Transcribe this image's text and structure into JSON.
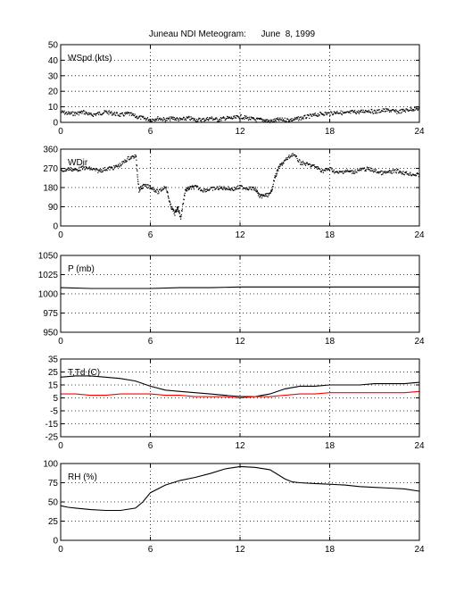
{
  "title": "Juneau NDI Meteogram:      June  8, 1999",
  "chart_data": [
    {
      "type": "line",
      "label": "WSpd (kts)",
      "xlim": [
        0,
        24
      ],
      "xticks": [
        0,
        6,
        12,
        18,
        24
      ],
      "ylim": [
        0,
        50
      ],
      "yticks": [
        0,
        10,
        20,
        30,
        40,
        50
      ],
      "grid": true,
      "series": [
        {
          "color": "#000000",
          "style": "dots",
          "x": [
            0,
            0.5,
            1,
            1.5,
            2,
            2.5,
            3,
            3.5,
            4,
            4.5,
            5,
            5.5,
            6,
            6.5,
            7,
            7.5,
            8,
            8.5,
            9,
            9.5,
            10,
            10.5,
            11,
            11.5,
            12,
            12.5,
            13,
            13.5,
            14,
            14.5,
            15,
            15.5,
            16,
            16.5,
            17,
            17.5,
            18,
            18.5,
            19,
            19.5,
            20,
            20.5,
            21,
            21.5,
            22,
            22.5,
            23,
            23.5,
            24
          ],
          "y": [
            7,
            6,
            6,
            7,
            5,
            6,
            7,
            6,
            5,
            6,
            4,
            3,
            2,
            3,
            2,
            3,
            2,
            3,
            2,
            2,
            3,
            2,
            3,
            3,
            4,
            3,
            2,
            2,
            1,
            2,
            2,
            2,
            3,
            4,
            5,
            6,
            6,
            7,
            6,
            7,
            7,
            8,
            7,
            8,
            8,
            7,
            8,
            9,
            9
          ]
        }
      ]
    },
    {
      "type": "scatter",
      "label": "WDir",
      "xlim": [
        0,
        24
      ],
      "xticks": [
        0,
        6,
        12,
        18,
        24
      ],
      "ylim": [
        0,
        360
      ],
      "yticks": [
        0,
        90,
        180,
        270,
        360
      ],
      "grid": true,
      "series": [
        {
          "color": "#000000",
          "style": "dots",
          "x": [
            0,
            0.5,
            1,
            1.5,
            2,
            2.5,
            3,
            3.5,
            4,
            4.5,
            5,
            5.2,
            5.5,
            6,
            6.5,
            7,
            7.3,
            7.6,
            7.8,
            8,
            8.3,
            8.6,
            9,
            9.5,
            10,
            10.5,
            11,
            11.5,
            12,
            12.5,
            13,
            13.3,
            13.6,
            14,
            14.3,
            14.6,
            15,
            15.5,
            16,
            16.5,
            17,
            17.5,
            18,
            18.5,
            19,
            19.5,
            20,
            20.5,
            21,
            21.5,
            22,
            22.5,
            23,
            23.5,
            24
          ],
          "y": [
            260,
            270,
            265,
            275,
            270,
            260,
            270,
            275,
            290,
            320,
            330,
            170,
            190,
            185,
            160,
            190,
            100,
            60,
            90,
            40,
            170,
            180,
            185,
            170,
            175,
            180,
            180,
            175,
            185,
            180,
            175,
            140,
            145,
            150,
            230,
            280,
            310,
            340,
            300,
            290,
            280,
            260,
            270,
            250,
            260,
            255,
            265,
            270,
            260,
            250,
            255,
            260,
            250,
            245,
            240
          ]
        }
      ]
    },
    {
      "type": "line",
      "label": "P (mb)",
      "xlim": [
        0,
        24
      ],
      "xticks": [
        0,
        6,
        12,
        18,
        24
      ],
      "ylim": [
        950,
        1050
      ],
      "yticks": [
        950,
        975,
        1000,
        1025,
        1050
      ],
      "grid": true,
      "series": [
        {
          "color": "#000000",
          "style": "line",
          "x": [
            0,
            2,
            4,
            6,
            8,
            10,
            12,
            14,
            16,
            18,
            20,
            22,
            24
          ],
          "y": [
            1008,
            1007,
            1007,
            1007,
            1008,
            1008,
            1009,
            1009,
            1009,
            1009,
            1009,
            1009,
            1009
          ]
        }
      ]
    },
    {
      "type": "line",
      "label": "T,Td (C)",
      "xlim": [
        0,
        24
      ],
      "xticks": [
        0,
        6,
        12,
        18,
        24
      ],
      "ylim": [
        -25,
        35
      ],
      "yticks": [
        -25,
        -15,
        -5,
        5,
        15,
        25,
        35
      ],
      "grid": true,
      "series": [
        {
          "color": "#000000",
          "style": "line",
          "x": [
            0,
            1,
            2,
            3,
            4,
            5,
            6,
            7,
            8,
            9,
            10,
            11,
            12,
            13,
            14,
            15,
            16,
            17,
            18,
            19,
            20,
            21,
            22,
            23,
            24
          ],
          "y": [
            21,
            22,
            22,
            21,
            20,
            18,
            14,
            11,
            10,
            9,
            8,
            7,
            6,
            6,
            8,
            12,
            14,
            14,
            15,
            15,
            15,
            16,
            16,
            16,
            17
          ]
        },
        {
          "color": "#ff0000",
          "style": "line",
          "x": [
            0,
            1,
            2,
            3,
            4,
            5,
            6,
            7,
            8,
            9,
            10,
            11,
            12,
            13,
            14,
            15,
            16,
            17,
            18,
            19,
            20,
            21,
            22,
            23,
            24
          ],
          "y": [
            8,
            8,
            7,
            7,
            8,
            8,
            8,
            7,
            7,
            6,
            6,
            6,
            5,
            6,
            6,
            7,
            8,
            8,
            9,
            9,
            9,
            9,
            9,
            9,
            10
          ]
        }
      ]
    },
    {
      "type": "line",
      "label": "RH (%)",
      "xlim": [
        0,
        24
      ],
      "xticks": [
        0,
        6,
        12,
        18,
        24
      ],
      "ylim": [
        0,
        100
      ],
      "yticks": [
        0,
        25,
        50,
        75,
        100
      ],
      "grid": true,
      "series": [
        {
          "color": "#000000",
          "style": "line",
          "x": [
            0,
            0.5,
            1,
            2,
            3,
            4,
            5,
            5.5,
            6,
            7,
            8,
            9,
            10,
            11,
            12,
            13,
            14,
            15,
            15.5,
            16,
            17,
            18,
            19,
            20,
            21,
            22,
            23,
            24
          ],
          "y": [
            45,
            43,
            42,
            40,
            39,
            39,
            42,
            50,
            62,
            72,
            78,
            82,
            87,
            93,
            96,
            95,
            92,
            80,
            76,
            75,
            74,
            73,
            72,
            70,
            69,
            68,
            67,
            64
          ]
        }
      ]
    }
  ]
}
